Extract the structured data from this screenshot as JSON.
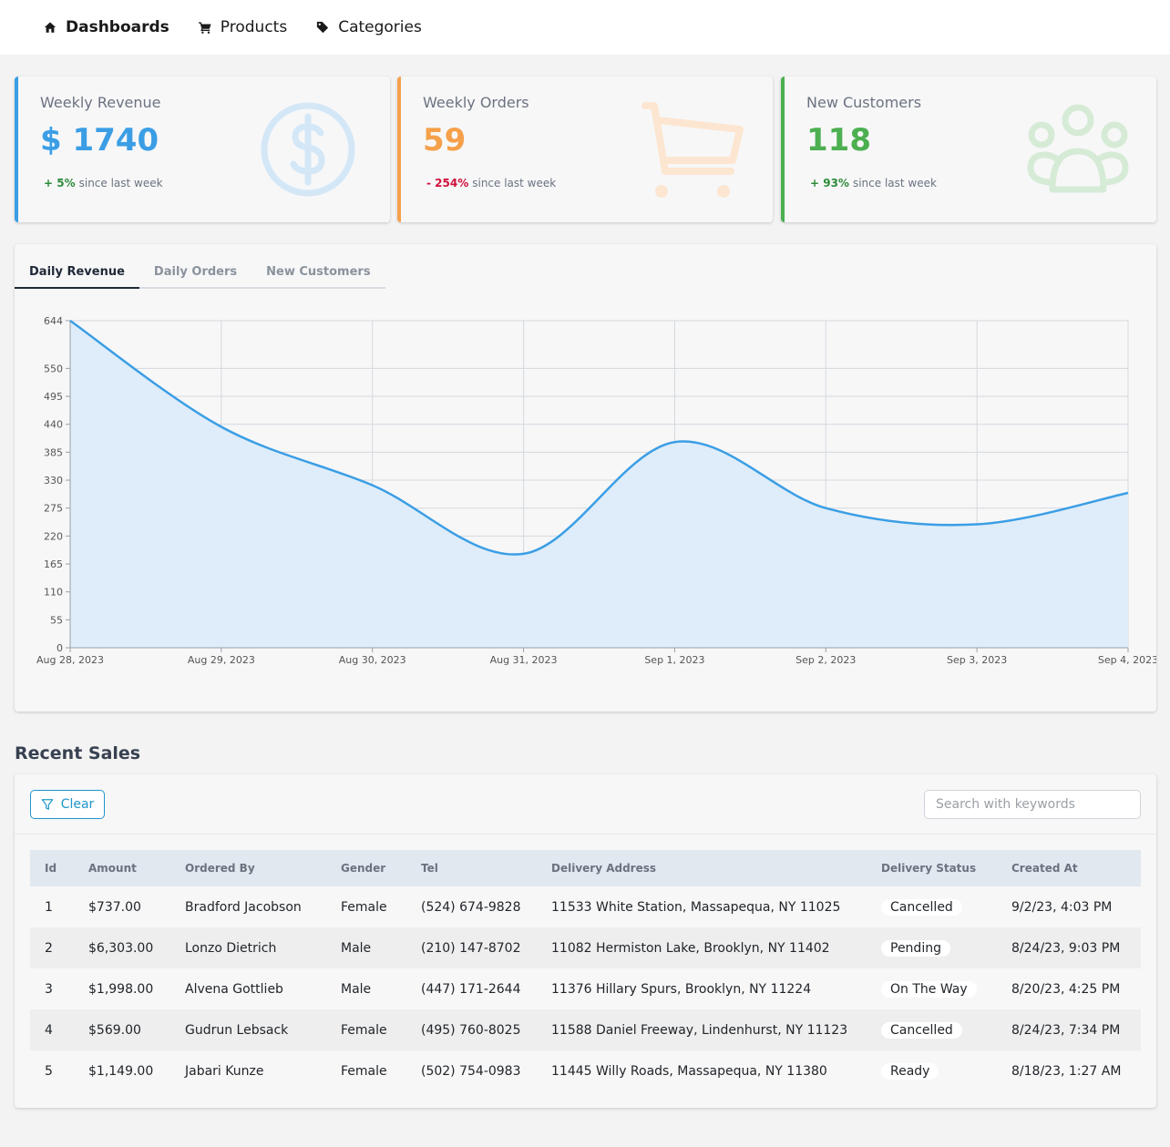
{
  "nav": {
    "items": [
      {
        "label": "Dashboards",
        "icon": "home-icon",
        "active": true
      },
      {
        "label": "Products",
        "icon": "cart-icon",
        "active": false
      },
      {
        "label": "Categories",
        "icon": "tag-icon",
        "active": false
      }
    ]
  },
  "stats": [
    {
      "title": "Weekly Revenue",
      "value": "$ 1740",
      "change": "+ 5%",
      "since": "since last week",
      "color": "#3b9ee5",
      "change_color": "#2e8b3a",
      "icon": "dollar-circle-icon"
    },
    {
      "title": "Weekly Orders",
      "value": "59",
      "change": "- 254%",
      "since": "since last week",
      "color": "#f5a04a",
      "change_color": "#d0103a",
      "icon": "shopping-cart-icon"
    },
    {
      "title": "New Customers",
      "value": "118",
      "change": "+ 93%",
      "since": "since last week",
      "color": "#4caf50",
      "change_color": "#2e8b3a",
      "icon": "users-icon"
    }
  ],
  "tabs": [
    {
      "label": "Daily Revenue",
      "active": true
    },
    {
      "label": "Daily Orders",
      "active": false
    },
    {
      "label": "New Customers",
      "active": false
    }
  ],
  "chart_data": {
    "type": "area",
    "x": [
      "Aug 28, 2023",
      "Aug 29, 2023",
      "Aug 30, 2023",
      "Aug 31, 2023",
      "Sep 1, 2023",
      "Sep 2, 2023",
      "Sep 3, 2023",
      "Sep 4, 2023"
    ],
    "series": [
      {
        "values": [
          644,
          435,
          320,
          185,
          405,
          275,
          243,
          305
        ]
      }
    ],
    "yticks": [
      0,
      55,
      110,
      165,
      220,
      275,
      330,
      385,
      440,
      495,
      550,
      644
    ],
    "ylim": [
      0,
      644
    ],
    "grid": true,
    "color": "#3b9ee5",
    "fill": "#deedf9"
  },
  "sales": {
    "title": "Recent Sales",
    "clear_label": "Clear",
    "search_placeholder": "Search with keywords",
    "columns": [
      "Id",
      "Amount",
      "Ordered By",
      "Gender",
      "Tel",
      "Delivery Address",
      "Delivery Status",
      "Created At"
    ],
    "rows": [
      [
        "1",
        "$737.00",
        "Bradford Jacobson",
        "Female",
        "(524) 674-9828",
        "11533 White Station, Massapequa, NY 11025",
        "Cancelled",
        "9/2/23, 4:03 PM"
      ],
      [
        "2",
        "$6,303.00",
        "Lonzo Dietrich",
        "Male",
        "(210) 147-8702",
        "11082 Hermiston Lake, Brooklyn, NY 11402",
        "Pending",
        "8/24/23, 9:03 PM"
      ],
      [
        "3",
        "$1,998.00",
        "Alvena Gottlieb",
        "Male",
        "(447) 171-2644",
        "11376 Hillary Spurs, Brooklyn, NY 11224",
        "On The Way",
        "8/20/23, 4:25 PM"
      ],
      [
        "4",
        "$569.00",
        "Gudrun Lebsack",
        "Female",
        "(495) 760-8025",
        "11588 Daniel Freeway, Lindenhurst, NY 11123",
        "Cancelled",
        "8/24/23, 7:34 PM"
      ],
      [
        "5",
        "$1,149.00",
        "Jabari Kunze",
        "Female",
        "(502) 754-0983",
        "11445 Willy Roads, Massapequa, NY 11380",
        "Ready",
        "8/18/23, 1:27 AM"
      ]
    ]
  }
}
